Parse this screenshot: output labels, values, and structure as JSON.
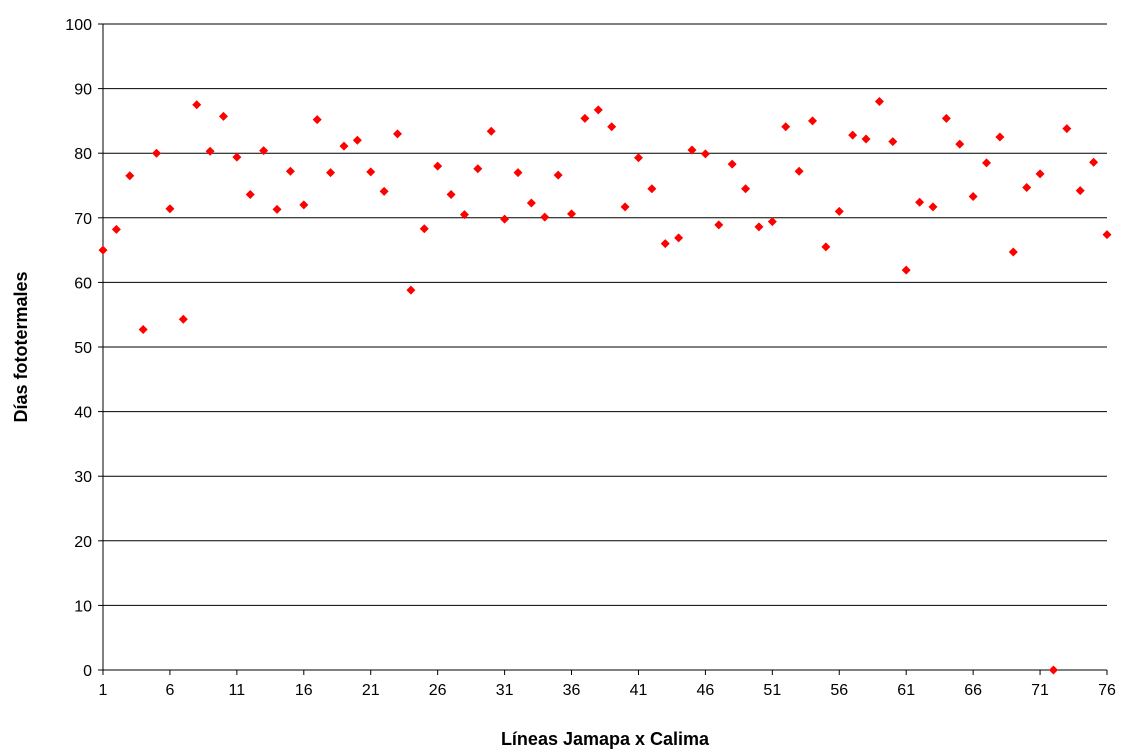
{
  "chart_data": {
    "type": "scatter",
    "title": "",
    "xlabel": "Líneas Jamapa x Calima",
    "ylabel": "Días fototermales",
    "xlim": [
      1,
      76
    ],
    "ylim": [
      0,
      100
    ],
    "x_ticks": [
      "1",
      "6",
      "11",
      "16",
      "21",
      "26",
      "31",
      "36",
      "41",
      "46",
      "51",
      "56",
      "61",
      "66",
      "71",
      "76"
    ],
    "y_ticks": [
      "0",
      "10",
      "20",
      "30",
      "40",
      "50",
      "60",
      "70",
      "80",
      "90",
      "100"
    ],
    "grid": "horizontal",
    "marker_color": "#ff0000",
    "marker_shape": "diamond",
    "x": [
      1,
      2,
      3,
      4,
      5,
      6,
      7,
      8,
      9,
      10,
      11,
      12,
      13,
      14,
      15,
      16,
      17,
      18,
      19,
      20,
      21,
      22,
      23,
      24,
      25,
      26,
      27,
      28,
      29,
      30,
      31,
      32,
      33,
      34,
      35,
      36,
      37,
      38,
      39,
      40,
      41,
      42,
      43,
      44,
      45,
      46,
      47,
      48,
      49,
      50,
      51,
      52,
      53,
      54,
      55,
      56,
      57,
      58,
      59,
      60,
      61,
      62,
      63,
      64,
      65,
      66,
      67,
      68,
      69,
      70,
      71,
      72,
      73,
      74,
      75,
      76
    ],
    "y": [
      65.0,
      68.2,
      76.5,
      52.7,
      80.0,
      71.4,
      54.3,
      87.5,
      80.3,
      85.7,
      79.4,
      73.6,
      80.4,
      71.3,
      77.2,
      72.0,
      85.2,
      77.0,
      81.1,
      82.0,
      77.1,
      74.1,
      83.0,
      58.8,
      68.3,
      78.0,
      73.6,
      70.5,
      77.6,
      83.4,
      69.8,
      77.0,
      72.3,
      70.1,
      76.6,
      70.6,
      85.4,
      86.7,
      84.1,
      71.7,
      79.3,
      74.5,
      66.0,
      66.9,
      80.5,
      79.9,
      68.9,
      78.3,
      74.5,
      68.6,
      69.4,
      84.1,
      77.2,
      85.0,
      65.5,
      71.0,
      82.8,
      82.2,
      88.0,
      81.8,
      61.9,
      72.4,
      71.7,
      85.4,
      81.4,
      73.3,
      78.5,
      82.5,
      64.7,
      74.7,
      76.8,
      0.0,
      83.8,
      74.2,
      78.6,
      67.4
    ]
  }
}
